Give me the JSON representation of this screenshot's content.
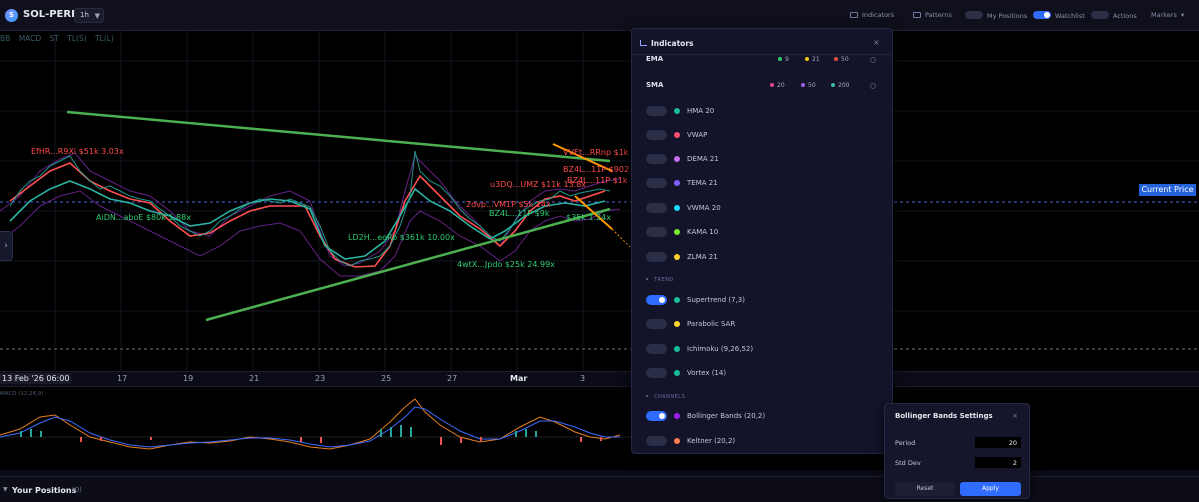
{
  "topbar": {
    "logo_letter": "S",
    "symbol": "SOL-PERP",
    "timeframe": "1h",
    "items": [
      {
        "label": "Indicators",
        "icon": "chart-line-icon"
      },
      {
        "label": "Patterns",
        "icon": "grid-icon"
      },
      {
        "label": "My Positions",
        "toggle": false
      },
      {
        "label": "Watchlist",
        "toggle": true
      },
      {
        "label": "Actions",
        "toggle": false
      },
      {
        "label": "Markers",
        "dropdown": true
      }
    ]
  },
  "chart": {
    "legend": [
      "BB",
      "MACD",
      "ST",
      "TL(S)",
      "TL(L)"
    ],
    "current_price_label": "Current Price",
    "annotations": [
      {
        "text": "EfHR...R9Xi $51k 3.03x",
        "color": "#ff4c4c"
      },
      {
        "text": "AiDN...aboE $80k 1.88x",
        "color": "#2ecc71"
      },
      {
        "text": "LD2H...eoRo $361k 10.00x",
        "color": "#2ecc71"
      },
      {
        "text": "4wtX...Jpdo $25k 24.99x",
        "color": "#2ecc71"
      },
      {
        "text": "u3DQ...UMZ $11k 13.8x",
        "color": "#ff4c4c"
      },
      {
        "text": "VVEt...RRnp $1k 1",
        "color": "#ff4c4c"
      },
      {
        "text": "BZ4L...11P $902 2",
        "color": "#ff4c4c"
      },
      {
        "text": "BZ4L...11P $1k 1",
        "color": "#ff4c4c"
      },
      {
        "text": "BZ4L...11P $9k",
        "color": "#2ecc71"
      },
      {
        "text": "2dvp...VM1P $5k 14x",
        "color": "#ff4c4c"
      },
      {
        "text": "$35k 1.24x",
        "color": "#2ecc71"
      }
    ],
    "x_axis": {
      "current_date": "13 Feb '26  06:00",
      "labels": [
        "17",
        "19",
        "21",
        "23",
        "25",
        "27",
        "Mar",
        "3"
      ]
    },
    "macd_label": "MACD (12,26,9)"
  },
  "indicators_panel": {
    "title": "Indicators",
    "moving_averages": [
      {
        "name": "EMA",
        "periods": [
          {
            "value": "9",
            "color": "#2ecc71"
          },
          {
            "value": "21",
            "color": "#f1c40f"
          },
          {
            "value": "50",
            "color": "#e74c3c"
          }
        ]
      },
      {
        "name": "SMA",
        "periods": [
          {
            "value": "20",
            "color": "#e84393"
          },
          {
            "value": "50",
            "color": "#a55eea"
          },
          {
            "value": "200",
            "color": "#3cb8b2"
          }
        ]
      }
    ],
    "ma_list": [
      {
        "name": "HMA 20",
        "color": "#1abc9c",
        "on": false
      },
      {
        "name": "VWAP",
        "color": "#ff4d6d",
        "on": false
      },
      {
        "name": "DEMA 21",
        "color": "#c56cf0",
        "on": false
      },
      {
        "name": "TEMA 21",
        "color": "#7d5fff",
        "on": false
      },
      {
        "name": "VWMA 20",
        "color": "#18dcff",
        "on": false
      },
      {
        "name": "KAMA 10",
        "color": "#7bed2f",
        "on": false
      },
      {
        "name": "ZLMA 21",
        "color": "#ffd32a",
        "on": false
      }
    ],
    "trend_section": "TREND",
    "trend_list": [
      {
        "name": "Supertrend (7,3)",
        "color": "#1abc9c",
        "on": true
      },
      {
        "name": "Parabolic SAR",
        "color": "#ffd32a",
        "on": false
      },
      {
        "name": "Ichimoku (9,26,52)",
        "color": "#1abc9c",
        "on": false
      },
      {
        "name": "Vortex (14)",
        "color": "#1abc9c",
        "on": false
      }
    ],
    "channels_section": "CHANNELS",
    "channels_list": [
      {
        "name": "Bollinger Bands (20,2)",
        "color": "#a020f0",
        "on": true
      },
      {
        "name": "Keltner (20,2)",
        "color": "#ff7f50",
        "on": false
      }
    ]
  },
  "bb_settings": {
    "title": "Bollinger Bands Settings",
    "period_label": "Period",
    "period_value": "20",
    "stddev_label": "Std Dev",
    "stddev_value": "2",
    "reset_label": "Reset",
    "apply_label": "Apply"
  },
  "positions": {
    "title": "Your Positions",
    "count": "(0)"
  }
}
